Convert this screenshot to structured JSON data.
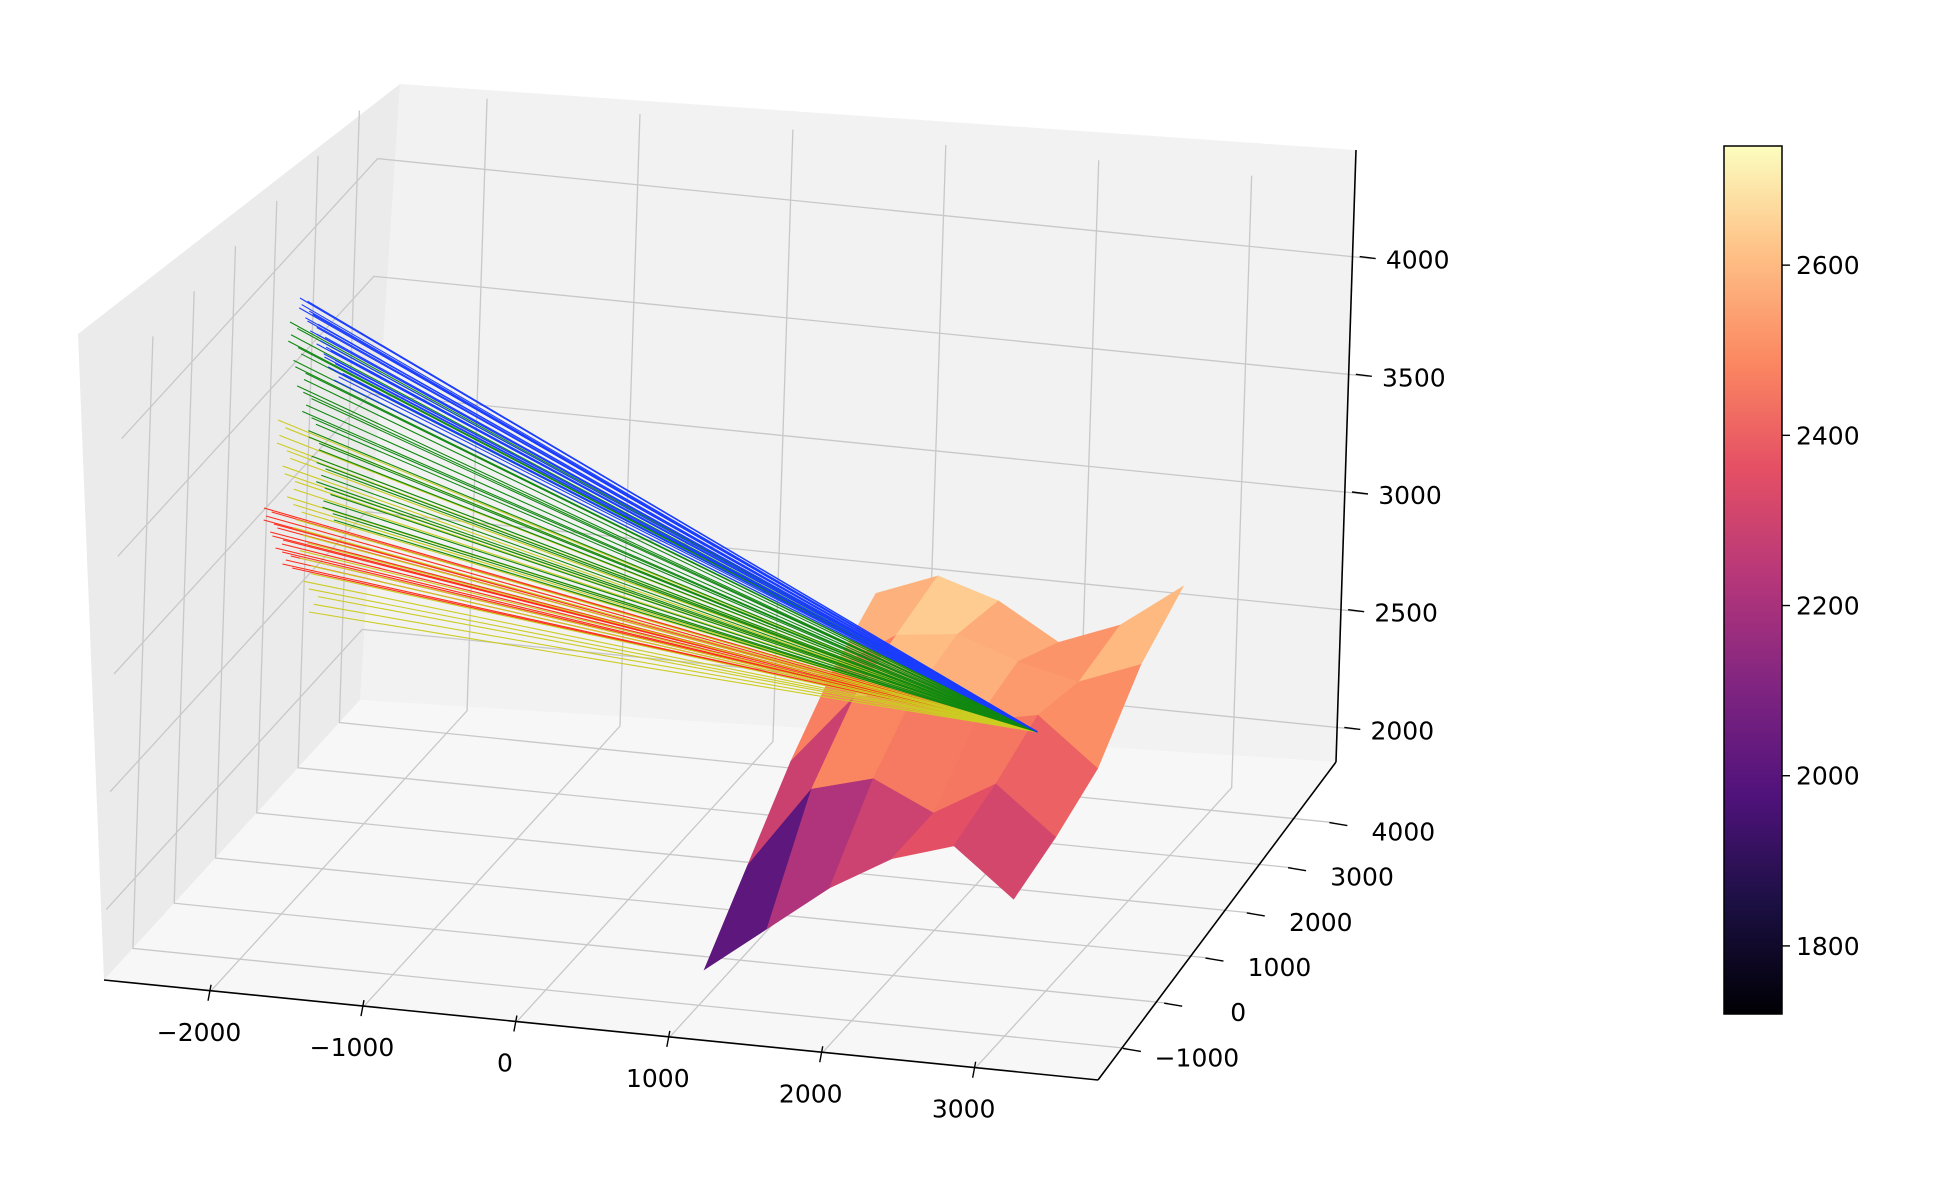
{
  "chart_data": {
    "type": "surface",
    "title": "",
    "xlabel": "",
    "ylabel": "",
    "zlabel": "",
    "grid": true,
    "x_ticks": [
      "−2000",
      "−1000",
      "0",
      "1000",
      "2000",
      "3000"
    ],
    "y_ticks": [
      "−1000",
      "0",
      "1000",
      "2000",
      "3000",
      "4000"
    ],
    "z_ticks": [
      "2000",
      "2500",
      "3000",
      "3500",
      "4000"
    ],
    "xlim": [
      -2700,
      3800
    ],
    "ylim": [
      -1700,
      4500
    ],
    "zlim": [
      1700,
      4300
    ],
    "surface": {
      "colormap": "magma",
      "z_range": [
        1720,
        2740
      ],
      "rows": [
        {
          "y": -500,
          "points": [
            [
              900,
              1750
            ],
            [
              1300,
              1950
            ],
            [
              1700,
              2150
            ],
            [
              2100,
              2300
            ],
            [
              2500,
              2380
            ],
            [
              2900,
              2180
            ]
          ]
        },
        {
          "y": 500,
          "points": [
            [
              900,
              2000
            ],
            [
              1300,
              2350
            ],
            [
              1700,
              2420
            ],
            [
              2100,
              2300
            ],
            [
              2500,
              2450
            ],
            [
              2900,
              2250
            ]
          ]
        },
        {
          "y": 1500,
          "points": [
            [
              900,
              2250
            ],
            [
              1300,
              2550
            ],
            [
              1700,
              2600
            ],
            [
              2100,
              2500
            ],
            [
              2500,
              2550
            ],
            [
              2900,
              2350
            ]
          ]
        },
        {
          "y": 2500,
          "points": [
            [
              900,
              2450
            ],
            [
              1300,
              2620
            ],
            [
              1700,
              2650
            ],
            [
              2100,
              2560
            ],
            [
              2500,
              2500
            ],
            [
              2900,
              2600
            ]
          ]
        },
        {
          "y": 3500,
          "points": [
            [
              900,
              2580
            ],
            [
              1300,
              2680
            ],
            [
              1700,
              2600
            ],
            [
              2100,
              2450
            ],
            [
              2500,
              2550
            ],
            [
              2900,
              2740
            ]
          ]
        }
      ]
    },
    "rays": {
      "origin": [
        2500,
        1500,
        2480
      ],
      "groups": [
        {
          "color": "#ff2a1a",
          "count": 16
        },
        {
          "color": "#cccc22",
          "count": 26
        },
        {
          "color": "#118811",
          "count": 32
        },
        {
          "color": "#1a3cff",
          "count": 26
        }
      ]
    },
    "colorbar": {
      "colormap": "magma",
      "min": 1720,
      "max": 2740,
      "ticks": [
        "1800",
        "2000",
        "2200",
        "2400",
        "2600"
      ],
      "tick_values": [
        1800,
        2000,
        2200,
        2400,
        2600
      ]
    }
  }
}
